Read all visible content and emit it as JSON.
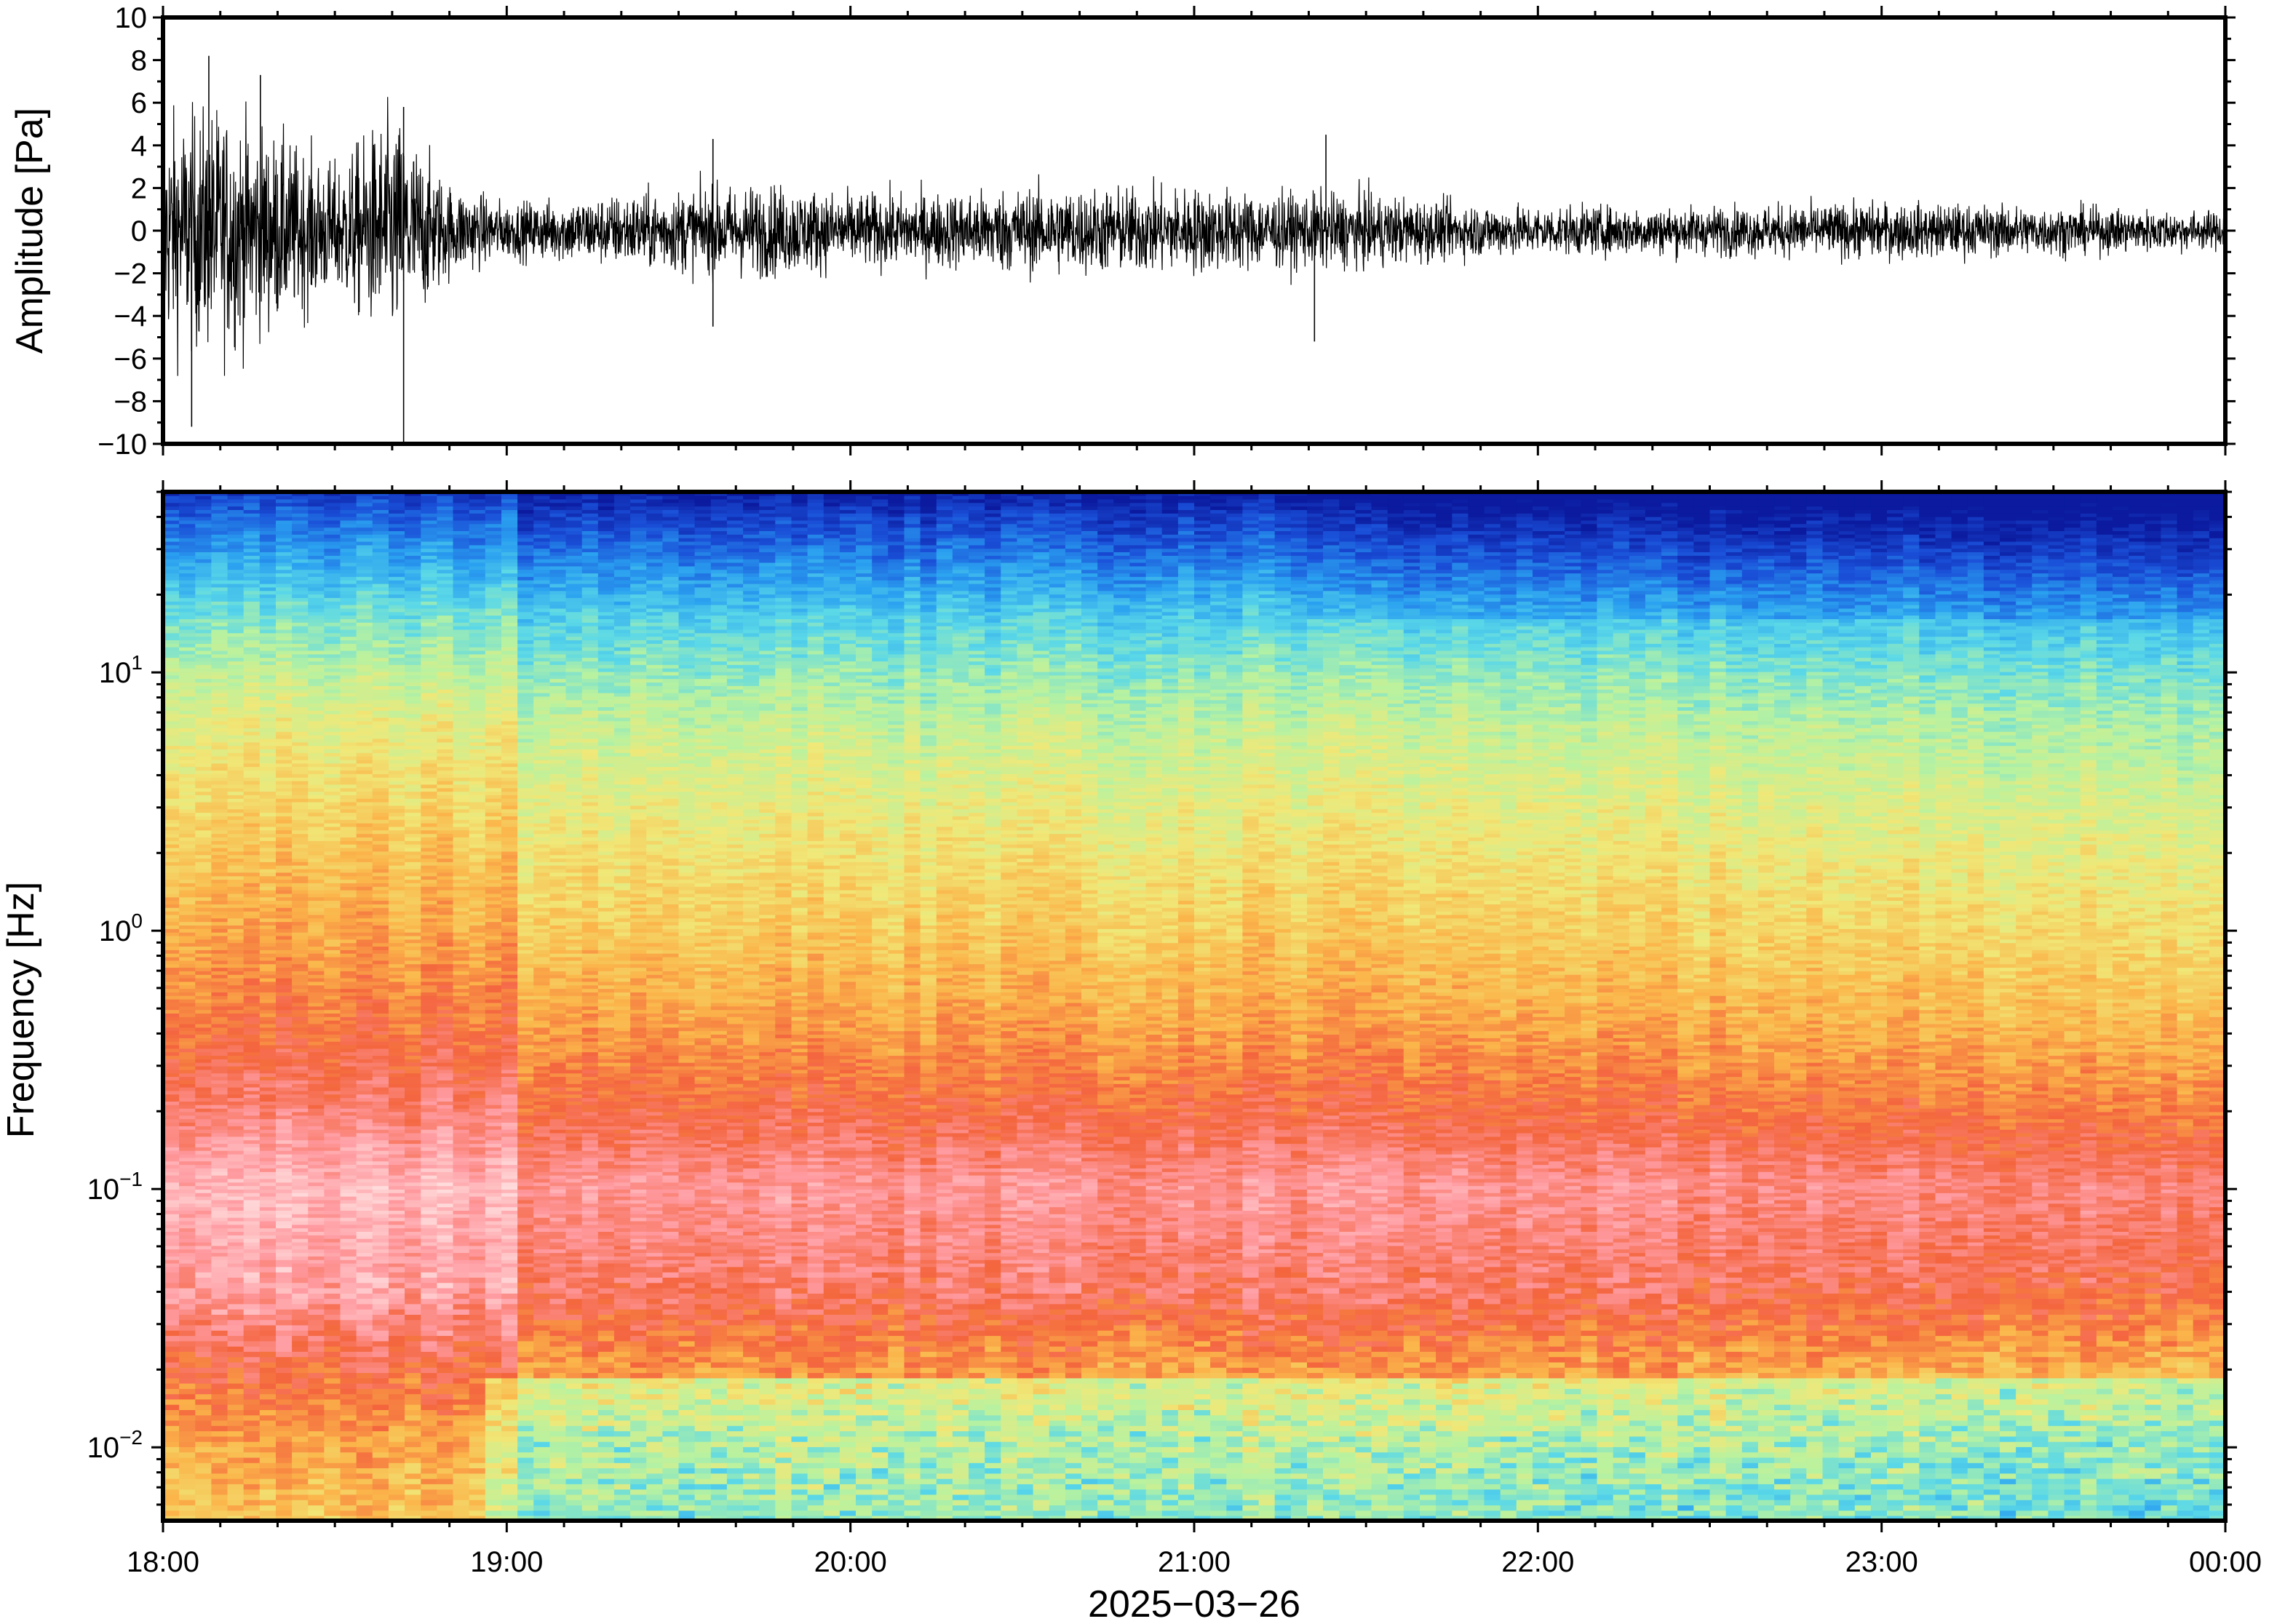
{
  "chart_data": [
    {
      "type": "line",
      "ylabel": "Amplitude [Pa]",
      "ylim": [
        -10,
        10
      ],
      "yticks": [
        "10",
        "8",
        "6",
        "4",
        "2",
        "0",
        "−2",
        "−4",
        "−6",
        "−8",
        "−10"
      ],
      "ytick_values": [
        10,
        8,
        6,
        4,
        2,
        0,
        -2,
        -4,
        -6,
        -8,
        -10
      ],
      "xlim": [
        "2025-03-26 18:00",
        "2025-03-27 00:00"
      ],
      "grid": false,
      "series": [
        {
          "color": "#000000",
          "envelope": {
            "x": [
              "18:00",
              "18:10",
              "18:20",
              "18:30",
              "18:40",
              "18:50",
              "19:00",
              "19:15",
              "19:30",
              "19:45",
              "20:00",
              "20:15",
              "20:30",
              "20:45",
              "21:00",
              "21:15",
              "21:30",
              "21:45",
              "22:00",
              "22:30",
              "23:00",
              "23:30",
              "00:00"
            ],
            "upper": [
              6.0,
              6.5,
              5.0,
              3.5,
              5.5,
              2.5,
              1.5,
              1.8,
              2.2,
              2.5,
              2.0,
              2.0,
              2.3,
              2.3,
              2.3,
              2.0,
              2.0,
              1.5,
              1.3,
              1.3,
              1.5,
              1.3,
              1.0
            ],
            "lower": [
              -6.0,
              -6.5,
              -5.0,
              -3.5,
              -7.0,
              -2.5,
              -1.5,
              -1.8,
              -2.2,
              -2.5,
              -2.0,
              -2.0,
              -2.3,
              -2.3,
              -2.3,
              -2.0,
              -2.0,
              -1.5,
              -1.3,
              -1.3,
              -1.5,
              -1.3,
              -1.0
            ]
          },
          "peaks": [
            {
              "x": "18:08",
              "y": 8.2
            },
            {
              "x": "18:05",
              "y": -9.2
            },
            {
              "x": "18:17",
              "y": 7.3
            },
            {
              "x": "18:42",
              "y": -10
            },
            {
              "x": "18:42",
              "y": 5.8
            },
            {
              "x": "19:36",
              "y": 4.3
            },
            {
              "x": "19:36",
              "y": -4.5
            },
            {
              "x": "21:23",
              "y": 4.5
            },
            {
              "x": "21:21",
              "y": -5.2
            }
          ]
        }
      ]
    },
    {
      "type": "heatmap",
      "ylabel": "Frequency [Hz]",
      "xlabel": "2025−03−26",
      "y_scale": "log",
      "ylim": [
        0.0052,
        50
      ],
      "yticks": [
        {
          "base": "10",
          "exp": "1",
          "value": 10
        },
        {
          "base": "10",
          "exp": "0",
          "value": 1
        },
        {
          "base": "10",
          "exp": "−1",
          "value": 0.1
        },
        {
          "base": "10",
          "exp": "−2",
          "value": 0.01
        }
      ],
      "xticks": [
        "18:00",
        "19:00",
        "20:00",
        "21:00",
        "22:00",
        "23:00",
        "00:00"
      ],
      "xlim": [
        "2025-03-26 18:00",
        "2025-03-27 00:00"
      ],
      "colormap": [
        "#0b1a9e",
        "#1a4fd8",
        "#2aa0f0",
        "#5ad8e8",
        "#b8f2a0",
        "#f0e878",
        "#fbb54a",
        "#f4653e",
        "#ff9aa0",
        "#ffdcdc"
      ],
      "profile_log10_freq": [
        -2.28,
        -2.0,
        -1.7,
        -1.4,
        -1.0,
        -0.7,
        -0.4,
        0.0,
        0.4,
        0.8,
        1.0,
        1.2,
        1.4,
        1.6,
        1.7
      ],
      "profile_level": [
        0.55,
        0.6,
        0.7,
        0.82,
        0.88,
        0.78,
        0.7,
        0.62,
        0.55,
        0.47,
        0.4,
        0.32,
        0.2,
        0.08,
        0.0
      ]
    }
  ]
}
